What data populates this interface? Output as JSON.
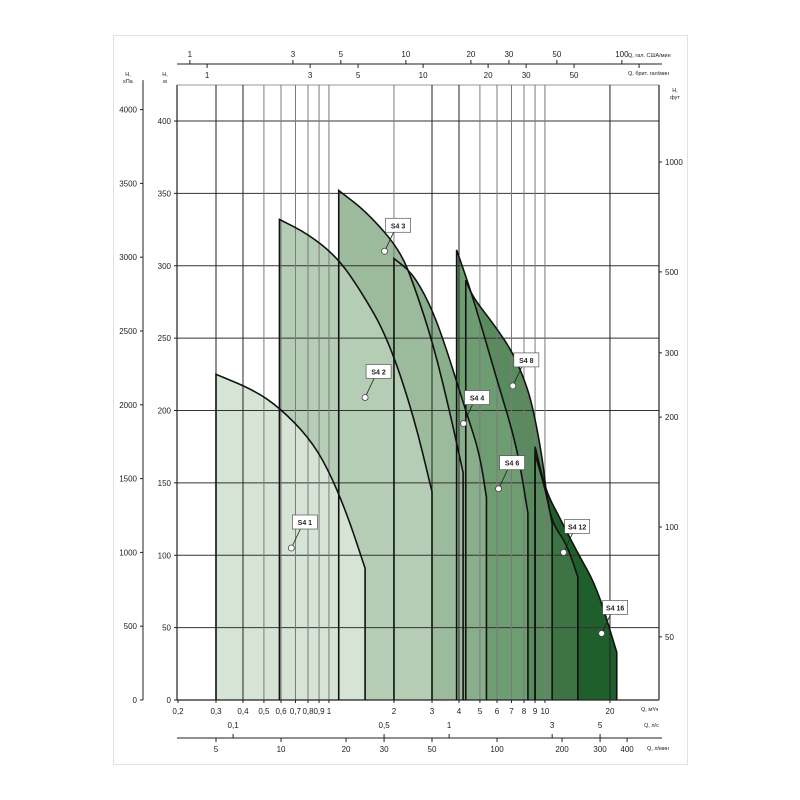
{
  "chart_data": {
    "type": "area",
    "title": "",
    "x_scale": "log",
    "y_scale": "linear",
    "xlabel": "Q, м³/ч",
    "ylabel": "H, м",
    "xlim": [
      0.2,
      33.6
    ],
    "ylim": [
      0,
      425
    ],
    "grid": true,
    "legend": "none",
    "x_ticks": [
      {
        "v": 0.2,
        "t": "0,2"
      },
      {
        "v": 0.3,
        "t": "0,3"
      },
      {
        "v": 0.4,
        "t": "0,4"
      },
      {
        "v": 0.5,
        "t": "0,5"
      },
      {
        "v": 0.6,
        "t": "0,6"
      },
      {
        "v": 0.7,
        "t": "0,7"
      },
      {
        "v": 0.8,
        "t": "0,8"
      },
      {
        "v": 0.9,
        "t": "0,9"
      },
      {
        "v": 1,
        "t": "1"
      },
      {
        "v": 2,
        "t": "2"
      },
      {
        "v": 3,
        "t": "3"
      },
      {
        "v": 4,
        "t": "4"
      },
      {
        "v": 5,
        "t": "5"
      },
      {
        "v": 6,
        "t": "6"
      },
      {
        "v": 7,
        "t": "7"
      },
      {
        "v": 8,
        "t": "8"
      },
      {
        "v": 9,
        "t": "9"
      },
      {
        "v": 10,
        "t": "10"
      },
      {
        "v": 20,
        "t": "20"
      }
    ],
    "y_ticks": [
      0,
      50,
      100,
      150,
      200,
      250,
      300,
      350,
      400
    ],
    "secondary_axes": {
      "left_kpa": {
        "label_top": "H,",
        "label_unit": "кПа",
        "ticks": [
          0,
          500,
          1000,
          1500,
          2000,
          2500,
          3000,
          3500,
          4000
        ]
      },
      "left_m": {
        "label_top": "H,",
        "label_unit": "м"
      },
      "right_ft": {
        "label_top": "H,",
        "label_unit": "фут",
        "scale": "log",
        "ticks": [
          50,
          100,
          200,
          300,
          500,
          1000
        ]
      },
      "top_us_gpm": {
        "label": "Q, гал. США/мин",
        "ticks": [
          1,
          3,
          5,
          10,
          20,
          30,
          50,
          100
        ]
      },
      "top_uk_gpm": {
        "label": "Q, брит. гал/мин",
        "ticks": [
          1,
          3,
          5,
          10,
          20,
          30,
          50
        ]
      },
      "bottom_ls": {
        "label": "Q, л/с",
        "ticks": [
          {
            "v": 0.1,
            "t": "0,1"
          },
          {
            "v": 0.5,
            "t": "0,5"
          },
          {
            "v": 1,
            "t": "1"
          },
          {
            "v": 3,
            "t": "3"
          },
          {
            "v": 5,
            "t": "5"
          }
        ]
      },
      "bottom_lmin": {
        "label": "Q, л/мин",
        "ticks": [
          5,
          10,
          20,
          30,
          50,
          100,
          200,
          300,
          400
        ]
      }
    },
    "series": [
      {
        "name": "S4 16",
        "color": "#1f5f2b",
        "points": [
          [
            9.0,
            175
          ],
          [
            10.1,
            144
          ],
          [
            11.7,
            126
          ],
          [
            14,
            103
          ],
          [
            17.4,
            78
          ],
          [
            21.5,
            33
          ]
        ],
        "marker": [
          18.3,
          46
        ]
      },
      {
        "name": "S4 12",
        "color": "#3e7346",
        "points": [
          [
            9.0,
            170
          ],
          [
            10.1,
            144
          ],
          [
            10.8,
            122
          ],
          [
            12.6,
            108
          ],
          [
            14.2,
            85
          ]
        ],
        "marker": [
          12.2,
          102
        ]
      },
      {
        "name": "S4 8",
        "color": "#5a8b5e",
        "points": [
          [
            4.3,
            290
          ],
          [
            4.65,
            278
          ],
          [
            5.9,
            258
          ],
          [
            7.1,
            240
          ],
          [
            8.1,
            220
          ],
          [
            8.8,
            202
          ],
          [
            9.76,
            166
          ],
          [
            10.1,
            144
          ],
          [
            10.8,
            122
          ]
        ],
        "marker": [
          7.1,
          217
        ]
      },
      {
        "name": "S4 6",
        "color": "#6f9d72",
        "points": [
          [
            3.9,
            311
          ],
          [
            4.65,
            278
          ],
          [
            6.0,
            221
          ],
          [
            7.43,
            175
          ],
          [
            8.34,
            129
          ]
        ],
        "marker": [
          6.1,
          146
        ]
      },
      {
        "name": "S4 4",
        "color": "#89ae8b",
        "points": [
          [
            2.0,
            305
          ],
          [
            2.43,
            295
          ],
          [
            2.9,
            275
          ],
          [
            3.39,
            249
          ],
          [
            4.34,
            198
          ],
          [
            4.97,
            171
          ],
          [
            5.36,
            140
          ]
        ],
        "marker": [
          4.2,
          191
        ]
      },
      {
        "name": "S4 3",
        "color": "#9cbb9d",
        "points": [
          [
            1.11,
            352
          ],
          [
            1.5,
            337
          ],
          [
            2.13,
            311
          ],
          [
            2.5,
            285
          ],
          [
            3.05,
            245
          ],
          [
            3.64,
            198
          ],
          [
            4.18,
            157
          ]
        ],
        "marker": [
          1.81,
          310
        ]
      },
      {
        "name": "S4 2",
        "color": "#b5cdb5",
        "points": [
          [
            0.59,
            332
          ],
          [
            0.8,
            322
          ],
          [
            1.09,
            306
          ],
          [
            1.4,
            283
          ],
          [
            1.86,
            251
          ],
          [
            2.45,
            198
          ],
          [
            3.0,
            144
          ]
        ],
        "marker": [
          1.47,
          209
        ]
      },
      {
        "name": "S4 1",
        "color": "#d6e4d6",
        "points": [
          [
            0.3,
            225
          ],
          [
            0.45,
            214
          ],
          [
            0.59,
            202
          ],
          [
            0.8,
            182
          ],
          [
            0.98,
            161
          ],
          [
            1.21,
            129
          ],
          [
            1.47,
            91
          ]
        ],
        "marker": [
          0.67,
          105
        ]
      }
    ]
  }
}
